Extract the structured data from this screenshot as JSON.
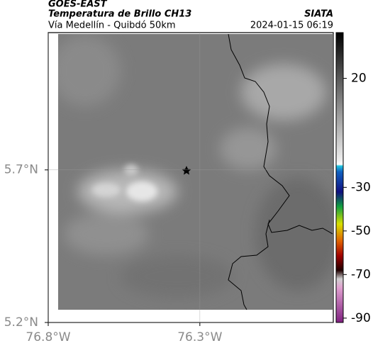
{
  "header": {
    "title": "GOES-EAST",
    "subtitle": "Temperatura de Brillo CH13",
    "region": "Vía Medellín - Quibdó 50km",
    "source": "SIATA",
    "datetime": "2024-01-15 06:19"
  },
  "map": {
    "xlim": [
      -76.8,
      -75.86
    ],
    "ylim": [
      5.2,
      6.15
    ],
    "xticks": [
      {
        "value": -76.8,
        "label": "76.8°W"
      },
      {
        "value": -76.3,
        "label": "76.3°W"
      }
    ],
    "yticks": [
      {
        "value": 5.2,
        "label": "5.2°N"
      },
      {
        "value": 5.7,
        "label": "5.7°N"
      }
    ]
  },
  "colorbar": {
    "lim": [
      -92,
      41
    ],
    "ticks": [
      20,
      -30,
      -50,
      -70,
      -90
    ]
  }
}
